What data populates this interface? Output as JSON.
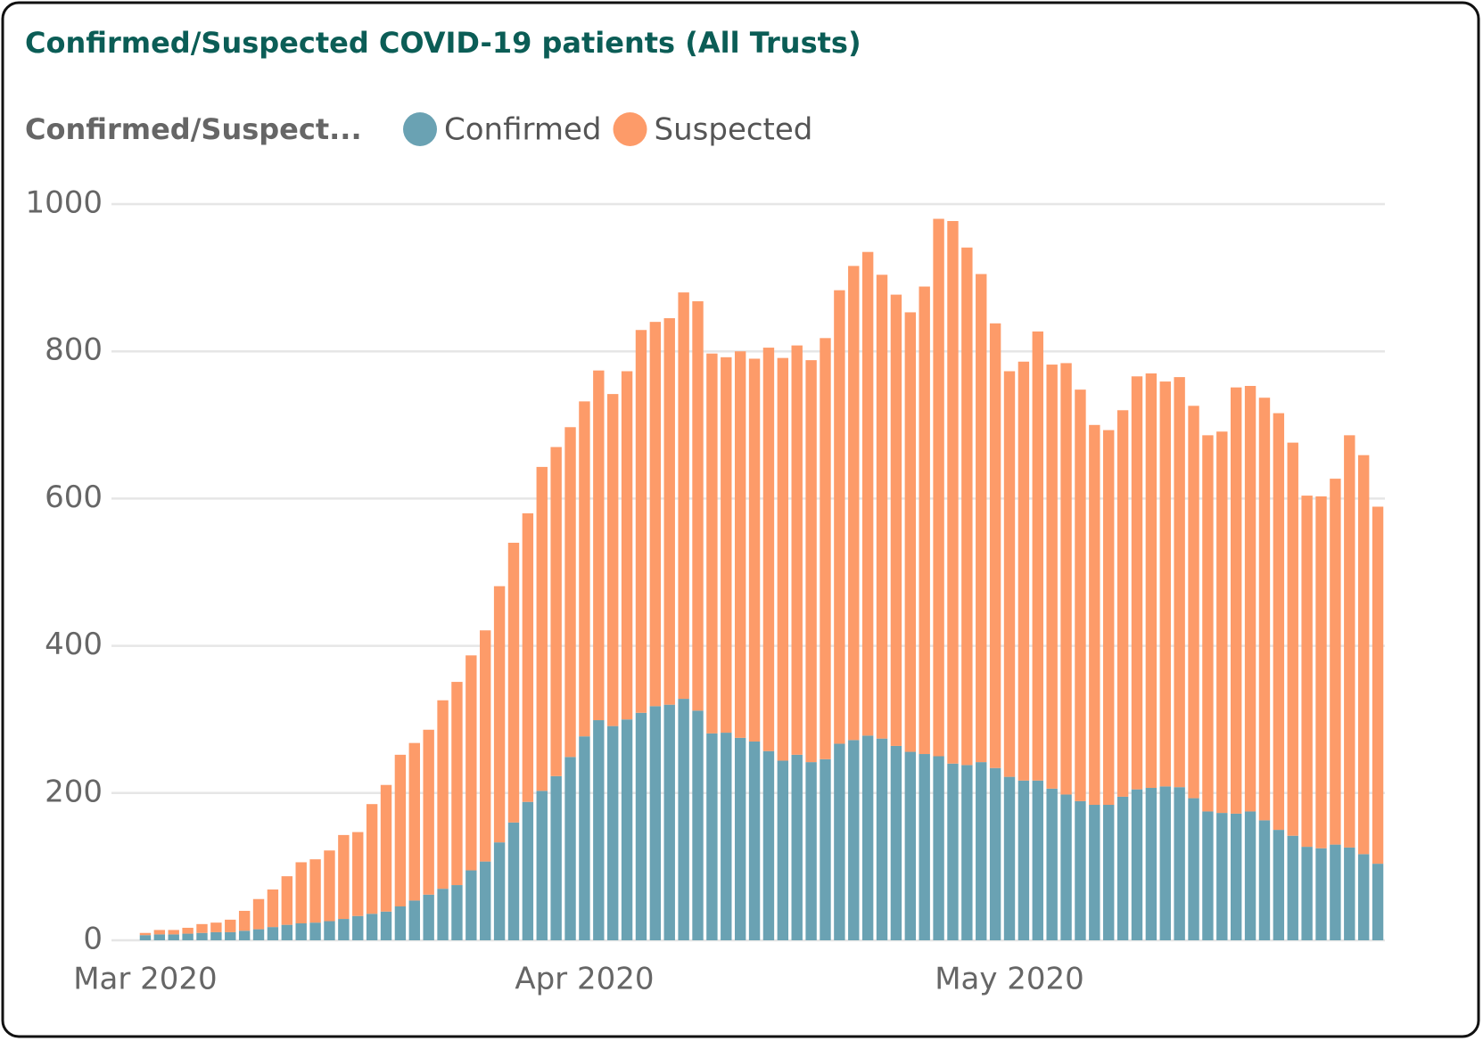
{
  "chart_data": {
    "type": "stacked_bar",
    "title": "Confirmed/Suspected COVID-19 patients (All Trusts)",
    "legend_title": "Confirmed/Suspect...",
    "categories": [
      "Mar 2020",
      null,
      null,
      null,
      null,
      null,
      null,
      null,
      null,
      null,
      null,
      null,
      null,
      null,
      null,
      null,
      null,
      null,
      null,
      null,
      null,
      null,
      null,
      null,
      null,
      null,
      null,
      null,
      null,
      null,
      null,
      "Apr 2020",
      null,
      null,
      null,
      null,
      null,
      null,
      null,
      null,
      null,
      null,
      null,
      null,
      null,
      null,
      null,
      null,
      null,
      null,
      null,
      null,
      null,
      null,
      null,
      null,
      null,
      null,
      null,
      null,
      null,
      "May 2020",
      null,
      null,
      null,
      null,
      null,
      null,
      null,
      null,
      null,
      null,
      null,
      null,
      null,
      null,
      null,
      null,
      null,
      null,
      null,
      null,
      null,
      null,
      null,
      null,
      null,
      null
    ],
    "series": [
      {
        "name": "Confirmed",
        "color": "#6aa2b3",
        "values": [
          7,
          8,
          8,
          9,
          10,
          11,
          11,
          13,
          15,
          18,
          21,
          23,
          24,
          26,
          29,
          33,
          36,
          39,
          46,
          54,
          62,
          70,
          75,
          95,
          107,
          133,
          160,
          188,
          203,
          223,
          249,
          277,
          299,
          291,
          300,
          309,
          318,
          320,
          328,
          312,
          281,
          282,
          275,
          270,
          257,
          244,
          252,
          242,
          246,
          267,
          272,
          278,
          274,
          264,
          256,
          253,
          250,
          240,
          238,
          242,
          234,
          222,
          217,
          217,
          206,
          198,
          189,
          184,
          184,
          195,
          205,
          207,
          209,
          208,
          193,
          175,
          173,
          172,
          175,
          163,
          150,
          142,
          127,
          125,
          130,
          126,
          117,
          104
        ]
      },
      {
        "name": "Suspected",
        "color": "#fd9b69",
        "values": [
          3,
          6,
          6,
          8,
          12,
          13,
          17,
          27,
          41,
          51,
          66,
          83,
          86,
          96,
          114,
          114,
          149,
          172,
          206,
          214,
          224,
          256,
          276,
          292,
          314,
          348,
          380,
          392,
          440,
          447,
          448,
          455,
          475,
          451,
          473,
          520,
          522,
          525,
          552,
          556,
          516,
          510,
          525,
          520,
          548,
          547,
          556,
          546,
          572,
          616,
          644,
          657,
          630,
          613,
          597,
          635,
          730,
          737,
          703,
          663,
          604,
          551,
          569,
          610,
          576,
          586,
          559,
          516,
          509,
          525,
          561,
          563,
          550,
          557,
          533,
          511,
          518,
          579,
          578,
          574,
          566,
          534,
          477,
          478,
          497,
          560,
          542,
          485
        ]
      }
    ],
    "ylim": [
      0,
      1000
    ],
    "yticks": [
      0,
      200,
      400,
      600,
      800,
      1000
    ],
    "grid": true
  }
}
